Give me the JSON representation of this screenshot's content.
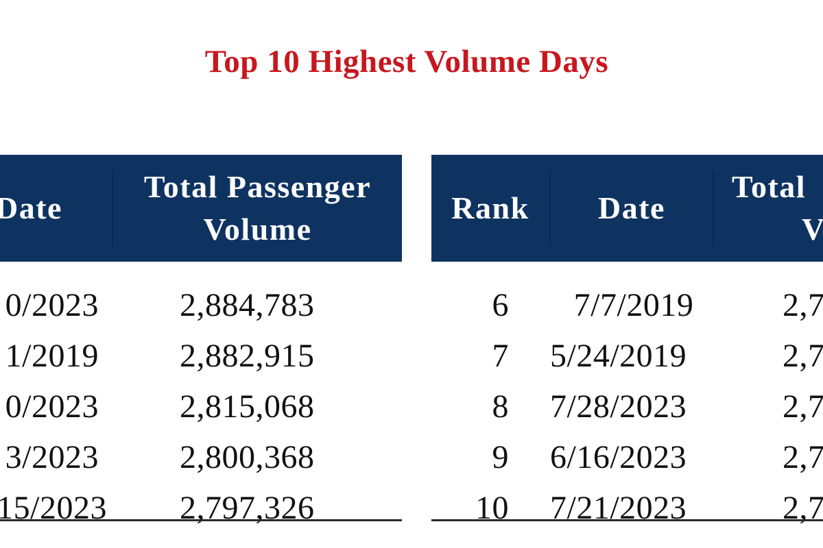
{
  "title": "Top 10 Highest Volume Days",
  "left_table": {
    "headers": {
      "date": "Date",
      "volume_line1": "Total Passenger",
      "volume_line2": "Volume"
    },
    "rows": [
      {
        "date": "0/2023",
        "volume": "2,884,783"
      },
      {
        "date": "1/2019",
        "volume": "2,882,915"
      },
      {
        "date": "0/2023",
        "volume": "2,815,068"
      },
      {
        "date": "3/2023",
        "volume": "2,800,368"
      },
      {
        "date": "15/2023",
        "volume": "2,797,326"
      }
    ]
  },
  "right_table": {
    "headers": {
      "rank": "Rank",
      "date": "Date",
      "volume_line1": "Total",
      "volume_line2": "V"
    },
    "rows": [
      {
        "rank": "6",
        "date": "7/7/2019",
        "volume": "2,7"
      },
      {
        "rank": "7",
        "date": "5/24/2019",
        "volume": "2,7"
      },
      {
        "rank": "8",
        "date": "7/28/2023",
        "volume": "2,7"
      },
      {
        "rank": "9",
        "date": "6/16/2023",
        "volume": "2,7"
      },
      {
        "rank": "10",
        "date": "7/21/2023",
        "volume": "2,7"
      }
    ]
  },
  "colors": {
    "title": "#c8171e",
    "header_bg": "#0f3361",
    "header_text": "#ffffff",
    "rule": "#2a2a2a"
  }
}
